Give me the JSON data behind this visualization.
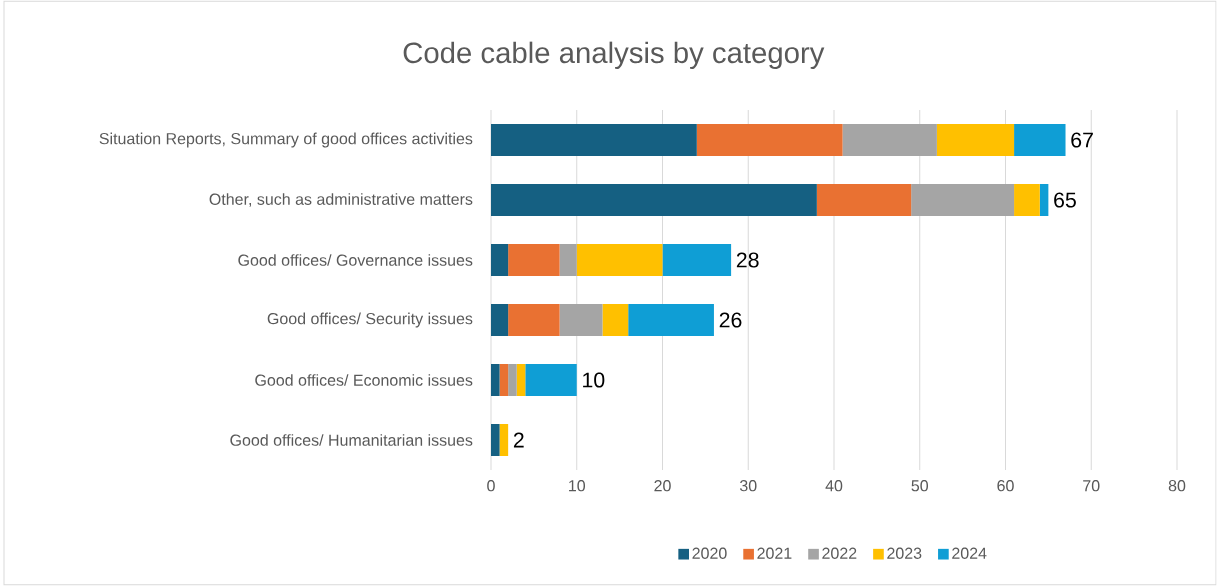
{
  "chart_data": {
    "type": "bar",
    "orientation": "horizontal",
    "stacked": true,
    "title": "Code cable analysis by category",
    "categories": [
      "Situation Reports, Summary of good offices activities",
      "Other, such as administrative matters",
      "Good offices/ Governance issues",
      "Good offices/ Security issues",
      "Good offices/ Economic issues",
      "Good offices/ Humanitarian issues"
    ],
    "series": [
      {
        "name": "2020",
        "color": "#156082",
        "values": [
          24,
          38,
          2,
          2,
          1,
          1
        ]
      },
      {
        "name": "2021",
        "color": "#e97132",
        "values": [
          17,
          11,
          6,
          6,
          1,
          0
        ]
      },
      {
        "name": "2022",
        "color": "#a5a5a5",
        "values": [
          11,
          12,
          2,
          5,
          1,
          0
        ]
      },
      {
        "name": "2023",
        "color": "#ffc000",
        "values": [
          9,
          3,
          10,
          3,
          1,
          1
        ]
      },
      {
        "name": "2024",
        "color": "#0f9ed5",
        "values": [
          6,
          1,
          8,
          10,
          6,
          0
        ]
      }
    ],
    "totals": [
      "67",
      "65",
      "28",
      "26",
      "10",
      "2"
    ],
    "xlim": [
      0,
      80
    ],
    "xticks": [
      0,
      10,
      20,
      30,
      40,
      50,
      60,
      70,
      80
    ],
    "grid": "x",
    "legend": "bottom"
  }
}
